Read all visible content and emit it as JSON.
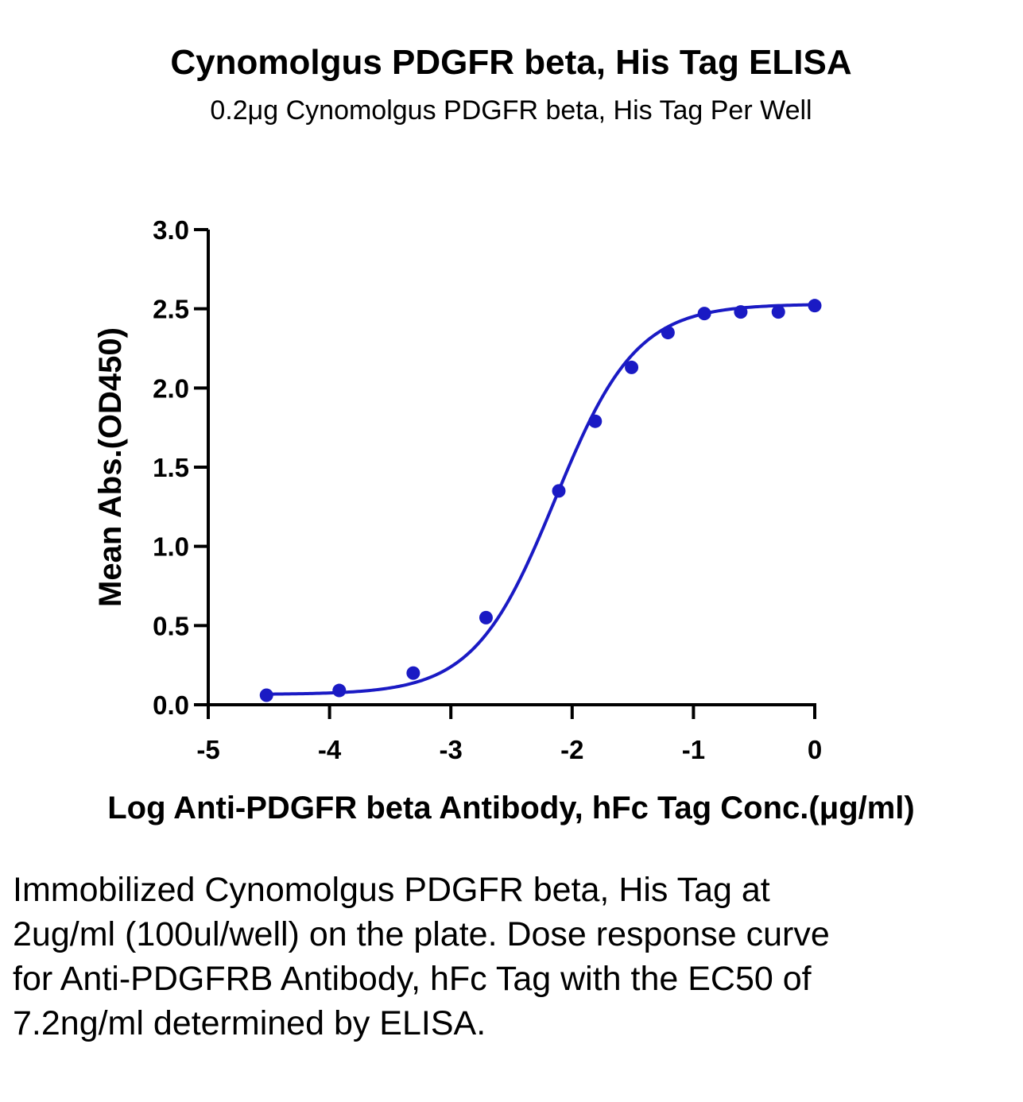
{
  "chart_data": {
    "type": "scatter",
    "title": "Cynomolgus PDGFR beta, His Tag ELISA",
    "subtitle": "0.2μg Cynomolgus PDGFR beta, His Tag Per Well",
    "xlabel": "Log Anti-PDGFR beta Antibody, hFc Tag Conc.(μg/ml)",
    "ylabel": "Mean Abs.(OD450)",
    "xlim": [
      -5,
      0
    ],
    "ylim": [
      0,
      3.0
    ],
    "x_ticks": [
      -5,
      -4,
      -3,
      -2,
      -1,
      0
    ],
    "x_tick_labels": [
      "-5",
      "-4",
      "-3",
      "-2",
      "-1",
      "0"
    ],
    "y_ticks": [
      0,
      0.5,
      1.0,
      1.5,
      2.0,
      2.5,
      3.0
    ],
    "y_tick_labels": [
      "0.0",
      "0.5",
      "1.0",
      "1.5",
      "2.0",
      "2.5",
      "3.0"
    ],
    "grid": false,
    "series": [
      {
        "color": "#1a1ac4",
        "x": [
          -4.52,
          -3.92,
          -3.31,
          -2.71,
          -2.11,
          -1.81,
          -1.51,
          -1.21,
          -0.91,
          -0.61,
          -0.3,
          0.0
        ],
        "y": [
          0.06,
          0.09,
          0.2,
          0.55,
          1.35,
          1.79,
          2.13,
          2.35,
          2.47,
          2.48,
          2.48,
          2.52
        ],
        "fit": "four-parameter logistic",
        "fit_params": {
          "bottom": 0.065,
          "top": 2.53,
          "log_ec50": -2.14,
          "hill": 1.3
        }
      }
    ]
  },
  "caption": "Immobilized Cynomolgus PDGFR beta, His Tag at 2ug/ml (100ul/well) on the plate. Dose response curve for Anti-PDGFRB Antibody, hFc Tag with the EC50 of 7.2ng/ml determined by ELISA."
}
